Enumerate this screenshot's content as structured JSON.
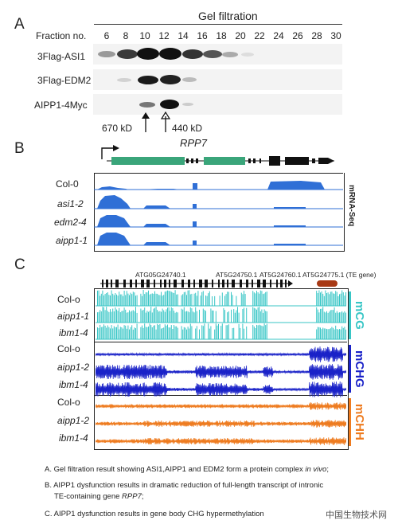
{
  "panelA": {
    "letter": "A",
    "title": "Gel filtration",
    "fraction_label": "Fraction no.",
    "fractions": [
      "6",
      "8",
      "10",
      "12",
      "14",
      "16",
      "18",
      "20",
      "22",
      "24",
      "26",
      "28",
      "30"
    ],
    "rows": [
      "3Flag-ASI1",
      "3Flag-EDM2",
      "AIPP1-4Myc"
    ],
    "markers": [
      "670 kD",
      "440 kD"
    ]
  },
  "panelB": {
    "letter": "B",
    "gene": "RPP7",
    "samples": [
      "Col-0",
      "asi1-2",
      "edm2-4",
      "aipp1-1"
    ],
    "side_label": "mRNA-Seq"
  },
  "panelC": {
    "letter": "C",
    "genes": [
      "ATG05G24740.1",
      "AT5G24750.1",
      "AT5G24760.1",
      "AT5G24775.1 (TE gene)"
    ],
    "groups": [
      {
        "label": "mCG",
        "color": "#38c6c6",
        "samples": [
          "Col-o",
          "aipp1-1",
          "ibm1-4"
        ]
      },
      {
        "label": "mCHG",
        "color": "#1a22c8",
        "samples": [
          "Col-o",
          "aipp1-2",
          "ibm1-4"
        ]
      },
      {
        "label": "mCHH",
        "color": "#ee7b1f",
        "samples": [
          "Col-o",
          "aipp1-2",
          "ibm1-4"
        ]
      }
    ]
  },
  "captions": {
    "a_pre": "A. Gel filtration result showing ASI1,AIPP1 and EDM2 form a protein complex ",
    "a_it": "in vivo",
    "a_post": ";",
    "b1": "B. AIPP1 dysfunction results in dramatic reduction of full-length transcript of intronic",
    "b2_pre": "TE-containing gene ",
    "b2_it": "RPP7",
    "b2_post": ";",
    "c": "C. AIPP1 dysfunction results in gene body CHG hypermethylation"
  },
  "watermark": "中国生物技术网",
  "colors": {
    "mrna": "#2f6fd6",
    "te_gene": "#a83a16",
    "exon": "#3aa57a"
  }
}
